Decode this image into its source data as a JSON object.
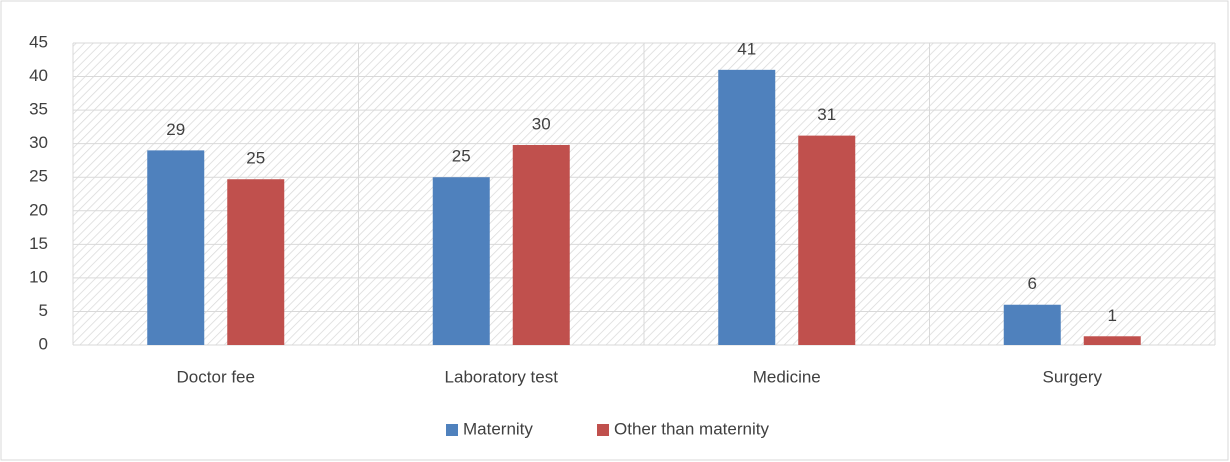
{
  "chart_data": {
    "type": "bar",
    "categories": [
      "Doctor fee",
      "Laboratory test",
      "Medicine",
      "Surgery"
    ],
    "series": [
      {
        "name": "Maternity",
        "color": "#4f81bd",
        "values": [
          29,
          25,
          41,
          6
        ]
      },
      {
        "name": "Other than maternity",
        "color": "#c0504d",
        "values": [
          24.7,
          29.8,
          31.2,
          1.3
        ],
        "value_labels": [
          "25",
          "30",
          "31",
          "1"
        ]
      }
    ],
    "ylim": [
      0,
      45
    ],
    "yticks": [
      0,
      5,
      10,
      15,
      20,
      25,
      30,
      35,
      40,
      45
    ],
    "grid": true,
    "legend": "bottom"
  }
}
